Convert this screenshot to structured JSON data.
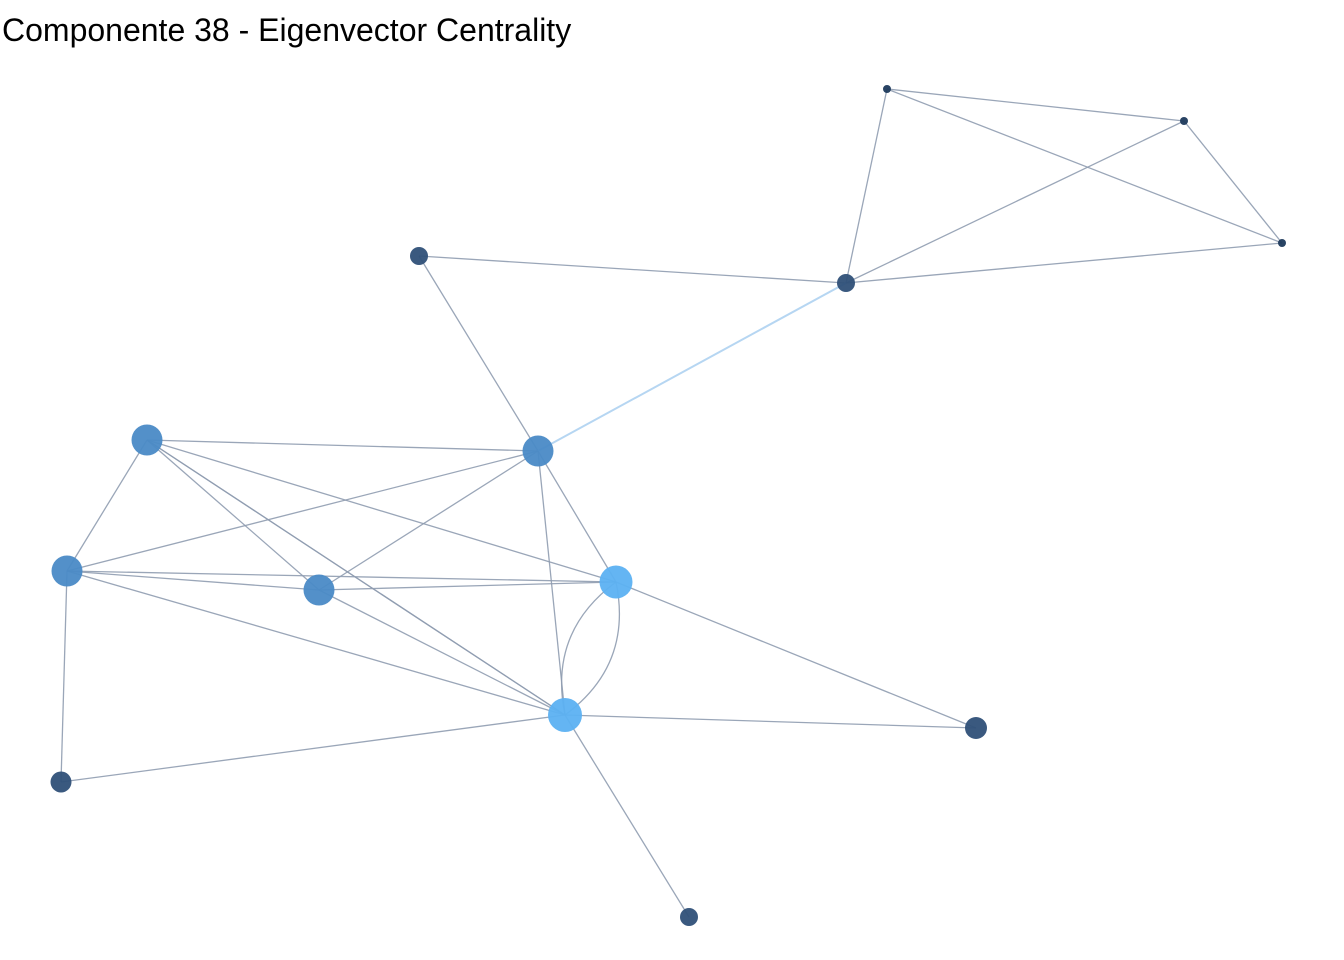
{
  "title": "Componente 38 - Eigenvector Centrality",
  "colors": {
    "edge": "#8f9cb0",
    "edge_highlight": "#b6d6f2",
    "node_low": "#1e3a5c",
    "node_mid_low": "#2f5078",
    "node_mid": "#4a8ac6",
    "node_high": "#5cb1f2",
    "background": "#ffffff"
  },
  "network": {
    "nodes": [
      {
        "id": "n1",
        "centrality": "low"
      },
      {
        "id": "n2",
        "centrality": "low"
      },
      {
        "id": "n3",
        "centrality": "low"
      },
      {
        "id": "n4",
        "centrality": "mid_low"
      },
      {
        "id": "n5",
        "centrality": "mid_low"
      },
      {
        "id": "n6",
        "centrality": "mid"
      },
      {
        "id": "n7",
        "centrality": "mid"
      },
      {
        "id": "n8",
        "centrality": "mid"
      },
      {
        "id": "n9",
        "centrality": "mid"
      },
      {
        "id": "n10",
        "centrality": "high"
      },
      {
        "id": "n11",
        "centrality": "high"
      },
      {
        "id": "n12",
        "centrality": "mid_low"
      },
      {
        "id": "n13",
        "centrality": "mid_low"
      },
      {
        "id": "n14",
        "centrality": "mid_low"
      }
    ],
    "edges": [
      {
        "source": "n1",
        "target": "n2"
      },
      {
        "source": "n1",
        "target": "n3"
      },
      {
        "source": "n1",
        "target": "n5"
      },
      {
        "source": "n2",
        "target": "n3"
      },
      {
        "source": "n2",
        "target": "n5"
      },
      {
        "source": "n3",
        "target": "n5"
      },
      {
        "source": "n4",
        "target": "n5"
      },
      {
        "source": "n4",
        "target": "n6"
      },
      {
        "source": "n5",
        "target": "n6",
        "highlight": true
      },
      {
        "source": "n7",
        "target": "n6"
      },
      {
        "source": "n7",
        "target": "n8"
      },
      {
        "source": "n7",
        "target": "n9"
      },
      {
        "source": "n7",
        "target": "n10"
      },
      {
        "source": "n7",
        "target": "n11"
      },
      {
        "source": "n7",
        "target": "n11"
      },
      {
        "source": "n6",
        "target": "n8"
      },
      {
        "source": "n6",
        "target": "n9"
      },
      {
        "source": "n6",
        "target": "n10"
      },
      {
        "source": "n6",
        "target": "n11"
      },
      {
        "source": "n8",
        "target": "n9"
      },
      {
        "source": "n8",
        "target": "n10"
      },
      {
        "source": "n8",
        "target": "n11"
      },
      {
        "source": "n8",
        "target": "n12"
      },
      {
        "source": "n9",
        "target": "n10"
      },
      {
        "source": "n9",
        "target": "n11"
      },
      {
        "source": "n10",
        "target": "n11",
        "curve": 1
      },
      {
        "source": "n10",
        "target": "n11",
        "curve": -1
      },
      {
        "source": "n10",
        "target": "n13"
      },
      {
        "source": "n11",
        "target": "n13"
      },
      {
        "source": "n11",
        "target": "n12"
      },
      {
        "source": "n11",
        "target": "n14"
      }
    ]
  }
}
